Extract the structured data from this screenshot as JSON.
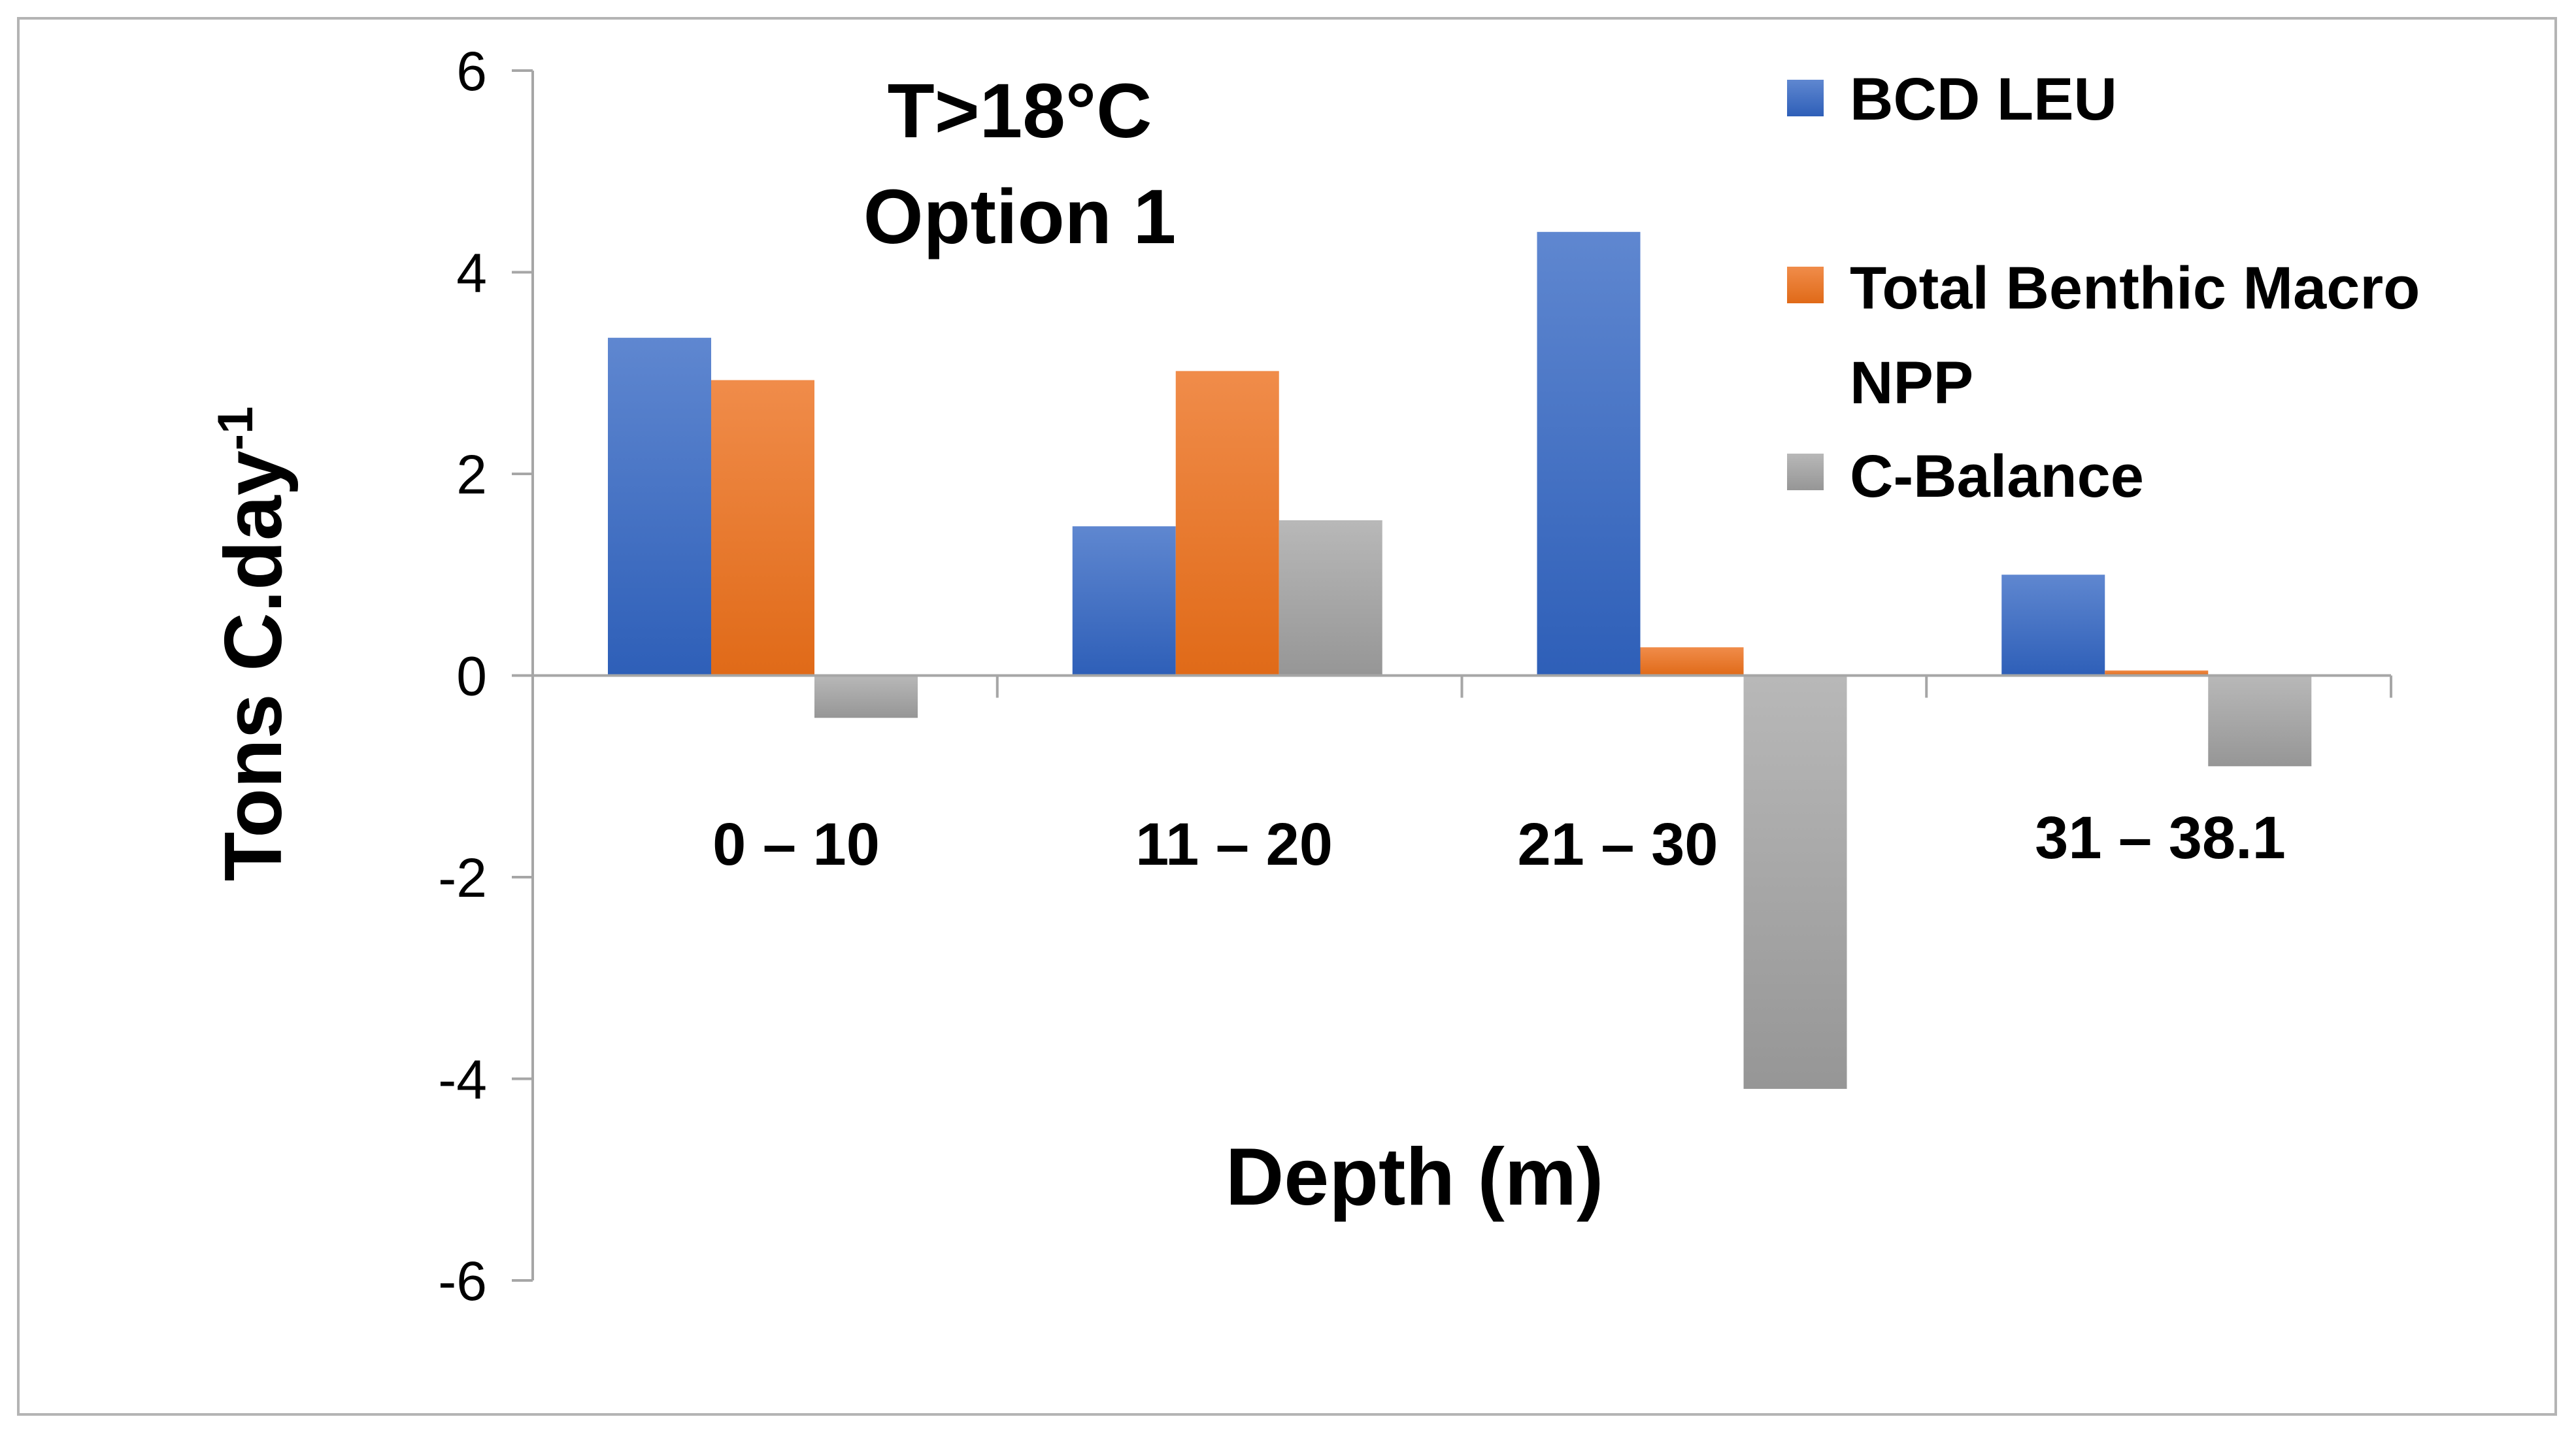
{
  "chart_data": {
    "type": "bar",
    "title": [
      "T>18°C",
      "Option 1"
    ],
    "xlabel": "Depth (m)",
    "ylabel_main": "Tons C.day",
    "ylabel_sup": "-1",
    "ylim": [
      -6,
      6
    ],
    "yticks": [
      6,
      4,
      2,
      0,
      -2,
      -4,
      -6
    ],
    "ytick_labels": [
      "6",
      "4",
      "2",
      "0",
      "-2",
      "-4",
      "-6"
    ],
    "categories": [
      "0 – 10",
      "11 – 20",
      "21 – 30",
      "31 – 38.1"
    ],
    "series": [
      {
        "name": "BCD LEU",
        "color": "#4472c4",
        "values": [
          3.35,
          1.48,
          4.4,
          1.0
        ]
      },
      {
        "name": "Total Benthic Macro NPP",
        "legend_lines": [
          "Total Benthic Macro",
          "NPP"
        ],
        "color": "#ed7d31",
        "values": [
          2.93,
          3.02,
          0.28,
          0.05
        ]
      },
      {
        "name": "C-Balance",
        "color": "#a5a5a5",
        "values": [
          -0.42,
          1.54,
          -4.1,
          -0.9
        ]
      }
    ],
    "legend_position": "top-right"
  }
}
